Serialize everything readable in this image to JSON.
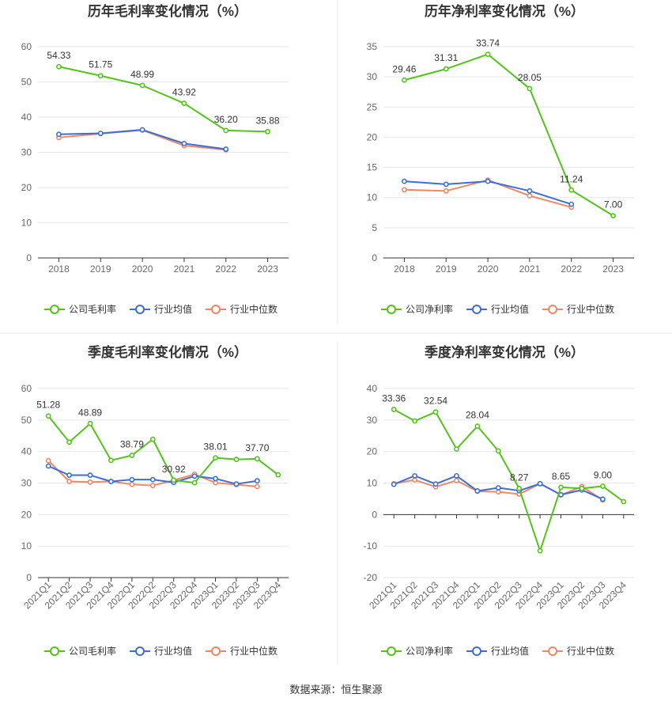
{
  "colors": {
    "company": "#52c41a",
    "industry_avg": "#3b6fd8",
    "industry_median": "#f08864",
    "grid": "#e6e6e6",
    "axis": "#333333"
  },
  "legend_labels": {
    "gross": [
      "公司毛利率",
      "行业均值",
      "行业中位数"
    ],
    "net": [
      "公司净利率",
      "行业均值",
      "行业中位数"
    ]
  },
  "source_text": "数据来源：恒生聚源",
  "chart_data": [
    {
      "type": "line",
      "title": "历年毛利率变化情况（%）",
      "categories": [
        "2018",
        "2019",
        "2020",
        "2021",
        "2022",
        "2023"
      ],
      "ylim": [
        0,
        60
      ],
      "yticks": [
        0,
        10,
        20,
        30,
        40,
        50,
        60
      ],
      "legend": "bottom",
      "series": [
        {
          "name": "公司毛利率",
          "color": "#52c41a",
          "values": [
            54.33,
            51.75,
            48.99,
            43.92,
            36.2,
            35.88
          ],
          "labels": [
            "54.33",
            "51.75",
            "48.99",
            "43.92",
            "36.20",
            "35.88"
          ]
        },
        {
          "name": "行业均值",
          "color": "#3b6fd8",
          "values": [
            35.1,
            35.4,
            36.4,
            32.5,
            30.9,
            null
          ]
        },
        {
          "name": "行业中位数",
          "color": "#f08864",
          "values": [
            34.2,
            35.3,
            36.3,
            31.9,
            30.7,
            null
          ]
        }
      ]
    },
    {
      "type": "line",
      "title": "历年净利率变化情况（%）",
      "categories": [
        "2018",
        "2019",
        "2020",
        "2021",
        "2022",
        "2023"
      ],
      "ylim": [
        0,
        35
      ],
      "yticks": [
        0,
        5,
        10,
        15,
        20,
        25,
        30,
        35
      ],
      "legend": "bottom",
      "series": [
        {
          "name": "公司净利率",
          "color": "#52c41a",
          "values": [
            29.46,
            31.31,
            33.74,
            28.05,
            11.24,
            7.0
          ],
          "labels": [
            "29.46",
            "31.31",
            "33.74",
            "28.05",
            "11.24",
            "7.00"
          ]
        },
        {
          "name": "行业均值",
          "color": "#3b6fd8",
          "values": [
            12.7,
            12.2,
            12.7,
            11.1,
            8.9,
            null
          ]
        },
        {
          "name": "行业中位数",
          "color": "#f08864",
          "values": [
            11.3,
            11.1,
            12.9,
            10.3,
            8.4,
            null
          ]
        }
      ]
    },
    {
      "type": "line",
      "title": "季度毛利率变化情况（%）",
      "categories": [
        "2021Q1",
        "2021Q2",
        "2021Q3",
        "2021Q4",
        "2022Q1",
        "2022Q2",
        "2022Q3",
        "2022Q4",
        "2023Q1",
        "2023Q2",
        "2023Q3",
        "2023Q4"
      ],
      "ylim": [
        0,
        60
      ],
      "yticks": [
        0,
        10,
        20,
        30,
        40,
        50,
        60
      ],
      "legend": "bottom",
      "series": [
        {
          "name": "公司毛利率",
          "color": "#52c41a",
          "values": [
            51.28,
            43.0,
            48.89,
            37.2,
            38.79,
            43.9,
            30.92,
            30.1,
            38.01,
            37.5,
            37.7,
            32.6
          ],
          "labels": [
            "51.28",
            "",
            "48.89",
            "",
            "38.79",
            "",
            "30.92",
            "",
            "38.01",
            "",
            "37.70",
            ""
          ]
        },
        {
          "name": "行业均值",
          "color": "#3b6fd8",
          "values": [
            35.4,
            32.5,
            32.5,
            30.5,
            31.1,
            31.1,
            30.2,
            32.2,
            31.4,
            29.7,
            30.7,
            null
          ]
        },
        {
          "name": "行业中位数",
          "color": "#f08864",
          "values": [
            37.1,
            30.5,
            30.3,
            30.5,
            29.6,
            29.2,
            30.9,
            32.8,
            30.1,
            29.5,
            28.9,
            null
          ]
        }
      ]
    },
    {
      "type": "line",
      "title": "季度净利率变化情况（%）",
      "categories": [
        "2021Q1",
        "2021Q2",
        "2021Q3",
        "2021Q4",
        "2022Q1",
        "2022Q2",
        "2022Q3",
        "2022Q4",
        "2023Q1",
        "2023Q2",
        "2023Q3",
        "2023Q4"
      ],
      "ylim": [
        -20,
        40
      ],
      "yticks": [
        -20,
        -10,
        0,
        10,
        20,
        30,
        40
      ],
      "legend": "bottom",
      "series": [
        {
          "name": "公司净利率",
          "color": "#52c41a",
          "values": [
            33.36,
            29.7,
            32.54,
            20.8,
            28.04,
            20.2,
            8.27,
            -11.5,
            8.65,
            8.3,
            9.0,
            4.1
          ],
          "labels": [
            "33.36",
            "",
            "32.54",
            "",
            "28.04",
            "",
            "8.27",
            "",
            "8.65",
            "",
            "9.00",
            ""
          ]
        },
        {
          "name": "行业均值",
          "color": "#3b6fd8",
          "values": [
            9.6,
            12.3,
            9.7,
            12.3,
            7.5,
            8.5,
            7.6,
            9.8,
            6.3,
            7.8,
            4.9,
            null
          ]
        },
        {
          "name": "行业中位数",
          "color": "#f08864",
          "values": [
            9.8,
            11.0,
            8.8,
            10.8,
            7.4,
            7.2,
            6.5,
            9.8,
            6.2,
            8.9,
            4.6,
            null
          ]
        }
      ]
    }
  ]
}
